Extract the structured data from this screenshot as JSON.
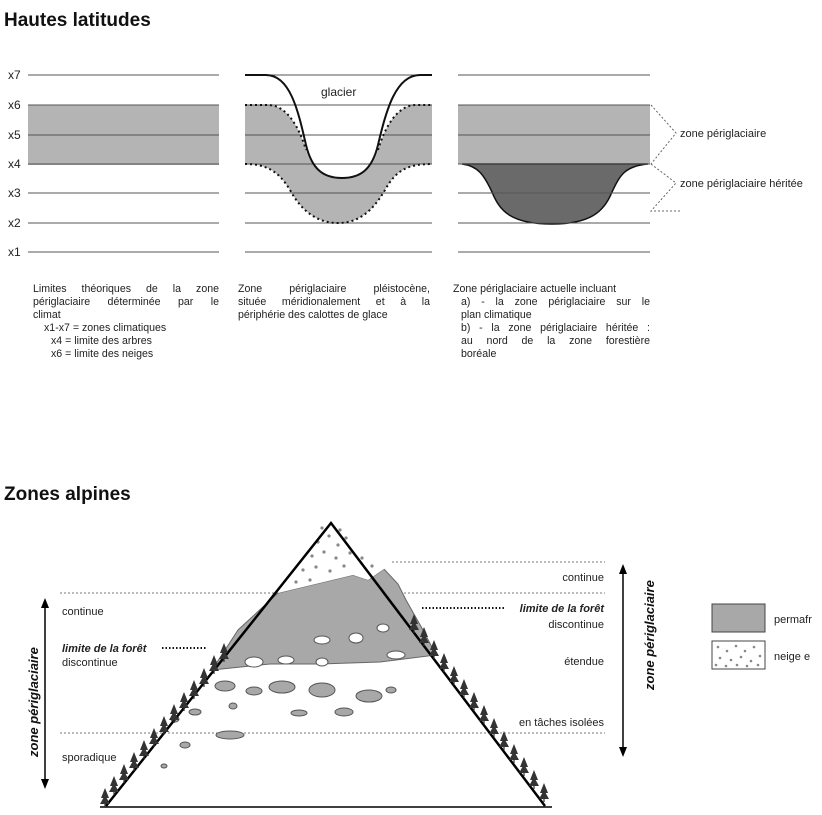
{
  "top_title": "Hautes latitudes",
  "bottom_title": "Zones alpines",
  "x_levels": [
    "x7",
    "x6",
    "x5",
    "x4",
    "x3",
    "x2",
    "x1"
  ],
  "glacier_label": "glacier",
  "zone_periglaciaire": "zone périglaciaire",
  "zone_periglaciaire_heritee": "zone périglaciaire héritée",
  "caption1": {
    "l1": "Limites théoriques de la zone",
    "l2": "périglaciaire déterminée par le",
    "l3": "climat",
    "l4": "x1-x7 = zones climatiques",
    "l5": "x4 = limite des arbres",
    "l6": "x6 = limite des neiges"
  },
  "caption2": {
    "l1": "Zone périglaciaire pléistocène,",
    "l2": "située méridionalement et à la",
    "l3": "périphérie des calottes de glace"
  },
  "caption3": {
    "l1": "Zone périglaciaire actuelle incluant",
    "l2": "a) - la zone périglaciaire sur le",
    "l3": "plan climatique",
    "l4": "b) - la zone périglaciaire héritée :",
    "l5": "au nord de la zone forestière",
    "l6": "boréale"
  },
  "left_labels": {
    "continue": "continue",
    "limite_foret": "limite de la forêt",
    "discontinue": "discontinue",
    "sporadique": "sporadique"
  },
  "right_labels": {
    "continue": "continue",
    "limite_foret": "limite de la forêt",
    "discontinue": "discontinue",
    "etendue": "étendue",
    "taches": "en tâches isolées"
  },
  "vertical_label": "zone périglaciaire",
  "legend": {
    "permafrost": "permafr",
    "neige": "neige e"
  },
  "colors": {
    "zone_light": "#b4b4b4",
    "zone_dark": "#6a6a6a",
    "permafrost": "#a8a8a8",
    "line": "#555555"
  }
}
